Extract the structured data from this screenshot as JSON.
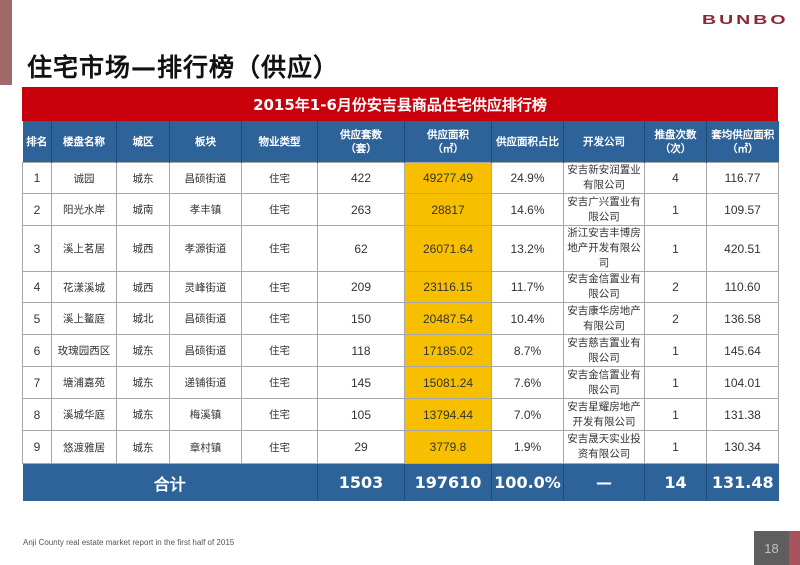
{
  "brand": "BUNBO",
  "page_title": "住宅市场—排行榜（供应）",
  "table": {
    "title": "2015年1-6月份安吉县商品住宅供应排行榜",
    "headers": [
      {
        "line1": "排名",
        "line2": ""
      },
      {
        "line1": "楼盘名称",
        "line2": ""
      },
      {
        "line1": "城区",
        "line2": ""
      },
      {
        "line1": "板块",
        "line2": ""
      },
      {
        "line1": "物业类型",
        "line2": ""
      },
      {
        "line1": "供应套数",
        "line2": "（套）"
      },
      {
        "line1": "供应面积",
        "line2": "（㎡）"
      },
      {
        "line1": "供应面积占比",
        "line2": ""
      },
      {
        "line1": "开发公司",
        "line2": ""
      },
      {
        "line1": "推盘次数",
        "line2": "（次）"
      },
      {
        "line1": "套均供应面积",
        "line2": "（㎡）"
      }
    ],
    "rows": [
      {
        "rank": "1",
        "name": "诚园",
        "district": "城东",
        "area_block": "昌硕街道",
        "type": "住宅",
        "units": "422",
        "supply_area": "49277.49",
        "share": "24.9%",
        "developer": "安吉新安润置业有限公司",
        "launches": "4",
        "avg_area": "116.77"
      },
      {
        "rank": "2",
        "name": "阳光水岸",
        "district": "城南",
        "area_block": "孝丰镇",
        "type": "住宅",
        "units": "263",
        "supply_area": "28817",
        "share": "14.6%",
        "developer": "安吉广兴置业有限公司",
        "launches": "1",
        "avg_area": "109.57"
      },
      {
        "rank": "3",
        "name": "溪上茗居",
        "district": "城西",
        "area_block": "孝源街道",
        "type": "住宅",
        "units": "62",
        "supply_area": "26071.64",
        "share": "13.2%",
        "developer": "浙江安吉丰博房地产开发有限公司",
        "launches": "1",
        "avg_area": "420.51"
      },
      {
        "rank": "4",
        "name": "花漾溪城",
        "district": "城西",
        "area_block": "灵峰街道",
        "type": "住宅",
        "units": "209",
        "supply_area": "23116.15",
        "share": "11.7%",
        "developer": "安吉金信置业有限公司",
        "launches": "2",
        "avg_area": "110.60"
      },
      {
        "rank": "5",
        "name": "溪上鳌庭",
        "district": "城北",
        "area_block": "昌硕街道",
        "type": "住宅",
        "units": "150",
        "supply_area": "20487.54",
        "share": "10.4%",
        "developer": "安吉康华房地产有限公司",
        "launches": "2",
        "avg_area": "136.58"
      },
      {
        "rank": "6",
        "name": "玫瑰园西区",
        "district": "城东",
        "area_block": "昌硕街道",
        "type": "住宅",
        "units": "118",
        "supply_area": "17185.02",
        "share": "8.7%",
        "developer": "安吉慈吉置业有限公司",
        "launches": "1",
        "avg_area": "145.64"
      },
      {
        "rank": "7",
        "name": "塘浦嘉苑",
        "district": "城东",
        "area_block": "递铺街道",
        "type": "住宅",
        "units": "145",
        "supply_area": "15081.24",
        "share": "7.6%",
        "developer": "安吉金信置业有限公司",
        "launches": "1",
        "avg_area": "104.01"
      },
      {
        "rank": "8",
        "name": "溪城华庭",
        "district": "城东",
        "area_block": "梅溪镇",
        "type": "住宅",
        "units": "105",
        "supply_area": "13794.44",
        "share": "7.0%",
        "developer": "安吉星耀房地产开发有限公司",
        "launches": "1",
        "avg_area": "131.38"
      },
      {
        "rank": "9",
        "name": "悠渡雅居",
        "district": "城东",
        "area_block": "章村镇",
        "type": "住宅",
        "units": "29",
        "supply_area": "3779.8",
        "share": "1.9%",
        "developer": "安吉晟天实业投资有限公司",
        "launches": "1",
        "avg_area": "130.34"
      }
    ],
    "total": {
      "label": "合计",
      "units": "1503",
      "supply_area": "197610",
      "share": "100.0%",
      "developer": "—",
      "launches": "14",
      "avg_area": "131.48"
    }
  },
  "footer": {
    "text": "Anji County real estate market report in the first half of 2015",
    "page_number": "18"
  },
  "colors": {
    "title_red": "#c8000a",
    "header_blue": "#2e6399",
    "highlight_yellow": "#f8bf00"
  }
}
